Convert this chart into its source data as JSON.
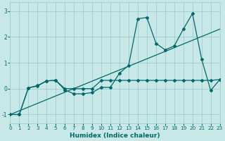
{
  "xlabel": "Humidex (Indice chaleur)",
  "background_color": "#c8e8e8",
  "grid_color": "#9ecece",
  "line_color": "#006868",
  "xlim": [
    0,
    23
  ],
  "ylim": [
    -1.35,
    3.35
  ],
  "yticks": [
    -1,
    0,
    1,
    2,
    3
  ],
  "xticks": [
    0,
    1,
    2,
    3,
    4,
    5,
    6,
    7,
    8,
    9,
    10,
    11,
    12,
    13,
    14,
    15,
    16,
    17,
    18,
    19,
    20,
    21,
    22,
    23
  ],
  "line1_x": [
    0,
    1,
    2,
    3,
    4,
    5,
    6,
    7,
    8,
    9,
    10,
    11,
    12,
    13,
    14,
    15,
    16,
    17,
    18,
    19,
    20,
    21,
    22,
    23
  ],
  "line1_y": [
    -1.0,
    -1.0,
    0.03,
    0.12,
    0.3,
    0.32,
    -0.05,
    -0.2,
    -0.2,
    -0.15,
    0.05,
    0.05,
    0.6,
    0.9,
    2.7,
    2.75,
    1.75,
    1.5,
    1.65,
    2.3,
    2.9,
    1.15,
    -0.07,
    0.35
  ],
  "line2_x": [
    0,
    1,
    2,
    3,
    4,
    5,
    6,
    7,
    8,
    9,
    10,
    11,
    12,
    13,
    14,
    15,
    16,
    17,
    18,
    19,
    20,
    21,
    22,
    23
  ],
  "line2_y": [
    -1.0,
    -1.0,
    0.03,
    0.1,
    0.3,
    0.32,
    0.0,
    0.0,
    0.0,
    0.0,
    0.32,
    0.32,
    0.32,
    0.32,
    0.32,
    0.32,
    0.32,
    0.32,
    0.32,
    0.32,
    0.32,
    0.32,
    0.32,
    0.35
  ],
  "line3_x": [
    0,
    23
  ],
  "line3_y": [
    -1.0,
    2.3
  ]
}
